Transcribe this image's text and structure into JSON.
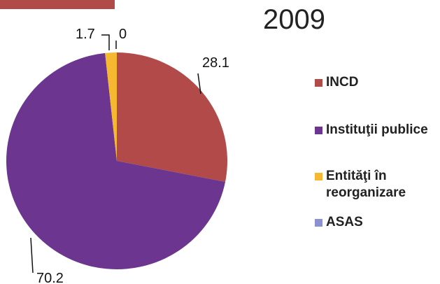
{
  "chart_data": {
    "type": "pie",
    "title": "2009",
    "slices": [
      {
        "name": "INCD",
        "value": 28.1,
        "label": "28.1",
        "color": "#b24a4a"
      },
      {
        "name": "Instituţii publice",
        "value": 70.2,
        "label": "70.2",
        "color": "#6b3590"
      },
      {
        "name": "Entităţi în reorganizare",
        "value": 1.7,
        "label": "1.7",
        "color": "#f5b830"
      },
      {
        "name": "ASAS",
        "value": 0,
        "label": "0",
        "color": "#8a90d0"
      }
    ],
    "legend_position": "right"
  },
  "legend": {
    "items": [
      {
        "label": "INCD",
        "color": "#b24a4a"
      },
      {
        "label": "Instituţii publice",
        "color": "#6b3590"
      },
      {
        "label": "Entităţi în reorganizare",
        "color": "#f5b830"
      },
      {
        "label": "ASAS",
        "color": "#8a90d0"
      }
    ]
  }
}
